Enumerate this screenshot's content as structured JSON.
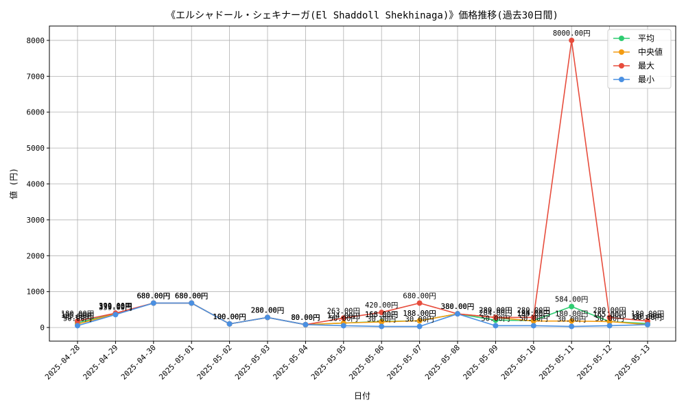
{
  "chart_data": {
    "type": "line",
    "title": "《エルシャドール・シェキナーガ(El Shaddoll Shekhinaga)》価格推移(過去30日間)",
    "xlabel": "日付",
    "ylabel": "値 (円)",
    "ylim": [
      -380,
      8400
    ],
    "yticks": [
      0,
      1000,
      2000,
      3000,
      4000,
      5000,
      6000,
      7000,
      8000
    ],
    "grid": true,
    "legend_position": "top-right",
    "label_suffix": "円",
    "categories": [
      "2025-04-28",
      "2025-04-29",
      "2025-04-30",
      "2025-05-01",
      "2025-05-02",
      "2025-05-03",
      "2025-05-04",
      "2025-05-05",
      "2025-05-06",
      "2025-05-07",
      "2025-05-08",
      "2025-05-09",
      "2025-05-10",
      "2025-05-11",
      "2025-05-12",
      "2025-05-13"
    ],
    "series": [
      {
        "name": "平均",
        "color": "#2ecc71",
        "values": [
          135,
          379,
          680,
          680,
          100,
          280,
          80,
          124,
          168,
          188,
          380,
          204,
          194,
          584,
          165,
          110
        ]
      },
      {
        "name": "中央値",
        "color": "#f39c12",
        "values": [
          95,
          379,
          680,
          680,
          100,
          280,
          80,
          124,
          155,
          188,
          380,
          280,
          180,
          180,
          165,
          80
        ]
      },
      {
        "name": "最大",
        "color": "#e74c3c",
        "values": [
          180,
          399,
          680,
          680,
          100,
          280,
          80,
          263,
          420,
          680,
          380,
          280,
          280,
          8000,
          280,
          180
        ]
      },
      {
        "name": "最小",
        "color": "#4a90e2",
        "values": [
          50,
          359,
          680,
          680,
          100,
          280,
          80,
          50,
          30,
          30,
          380,
          50,
          50,
          30,
          50,
          80
        ]
      }
    ]
  }
}
